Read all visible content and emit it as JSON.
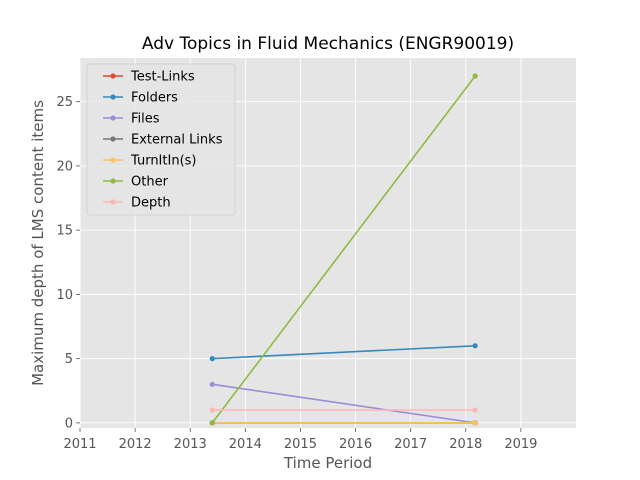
{
  "chart_data": {
    "type": "line",
    "title": "Adv Topics in Fluid Mechanics (ENGR90019)",
    "xlabel": "Time Period",
    "ylabel": "Maximum depth of LMS content items",
    "xlim": [
      2011,
      2020
    ],
    "ylim": [
      -0.4,
      28.4
    ],
    "x_ticks": [
      2011,
      2012,
      2013,
      2014,
      2015,
      2016,
      2017,
      2018,
      2019
    ],
    "y_ticks": [
      0,
      5,
      10,
      15,
      20,
      25
    ],
    "grid": true,
    "legend_position": "top-left",
    "x": [
      2013.4,
      2018.17
    ],
    "series": [
      {
        "name": "Test-Links",
        "values": [
          0,
          0
        ],
        "color": "#E24A33"
      },
      {
        "name": "Folders",
        "values": [
          5,
          6
        ],
        "color": "#348ABD"
      },
      {
        "name": "Files",
        "values": [
          3,
          0
        ],
        "color": "#988ED5"
      },
      {
        "name": "External Links",
        "values": [
          0,
          0
        ],
        "color": "#777777"
      },
      {
        "name": "TurnItIn(s)",
        "values": [
          0,
          0
        ],
        "color": "#FBC15E"
      },
      {
        "name": "Other",
        "values": [
          0,
          27
        ],
        "color": "#8EBA42"
      },
      {
        "name": "Depth",
        "values": [
          1,
          1
        ],
        "color": "#FFB5B8"
      }
    ]
  }
}
